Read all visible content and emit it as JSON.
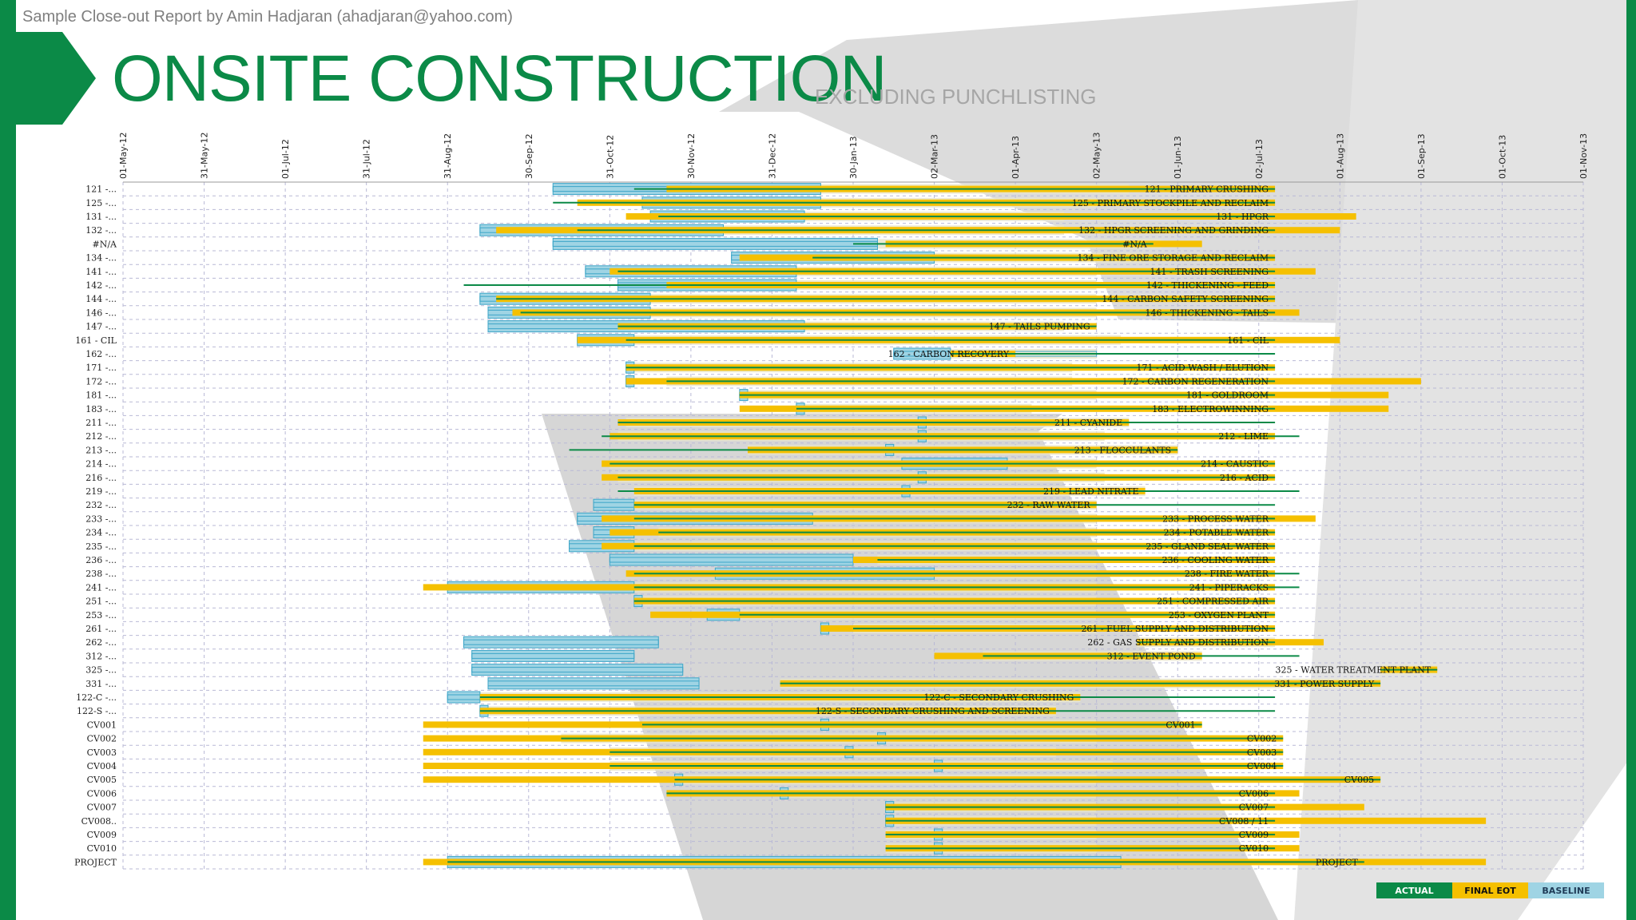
{
  "header_note": "Sample Close-out Report by Amin Hadjaran (ahadjaran@yahoo.com)",
  "title": "ONSITE CONSTRUCTION",
  "subtitle": "EXCLUDING PUNCHLISTING",
  "colors": {
    "accent": "#0b8a47",
    "eot": "#f5c000",
    "baseline": "#9fd4e4",
    "baseline_stroke": "#3ea6c8",
    "plan_fill": "#e9e5c8"
  },
  "legend": {
    "actual": "ACTUAL",
    "final_eot": "FINAL EOT",
    "baseline": "BASELINE"
  },
  "chart_data": {
    "type": "gantt",
    "date_ticks": [
      "01-May-12",
      "31-May-12",
      "01-Jul-12",
      "31-Jul-12",
      "31-Aug-12",
      "30-Sep-12",
      "31-Oct-12",
      "30-Nov-12",
      "31-Dec-12",
      "30-Jan-13",
      "02-Mar-13",
      "01-Apr-13",
      "02-May-13",
      "01-Jun-13",
      "02-Jul-13",
      "01-Aug-13",
      "01-Sep-13",
      "01-Oct-13",
      "01-Nov-13"
    ],
    "x_range_months": [
      0,
      18
    ],
    "series_names": [
      "ACTUAL",
      "FINAL EOT",
      "BASELINE"
    ],
    "tasks": [
      {
        "row": "121 -...",
        "label": "121 - PRIMARY CRUSHING",
        "base": [
          5.3,
          12.4
        ],
        "eot": [
          6.7,
          14.2
        ],
        "actual": [
          6.3,
          14.2
        ],
        "box": [
          5.3,
          8.6
        ],
        "fill": [
          6.7,
          12.4
        ]
      },
      {
        "row": "125 -...",
        "label": "125 - PRIMARY STOCKPILE AND RECLAIM",
        "base": [
          6.4,
          10.3
        ],
        "eot": [
          5.6,
          14.2
        ],
        "actual": [
          5.3,
          14.2
        ],
        "box": [
          6.4,
          8.6
        ],
        "fill": [
          6.4,
          12.0
        ]
      },
      {
        "row": "131 -...",
        "label": "131 - HPGR",
        "base": [
          6.5,
          11.6
        ],
        "eot": [
          6.2,
          15.2
        ],
        "actual": [
          6.6,
          14.2
        ],
        "box": [
          6.5,
          8.4
        ],
        "fill": [
          6.5,
          11.6
        ]
      },
      {
        "row": "132 -...",
        "label": "132 - HPGR SCREENING AND GRINDING",
        "base": [
          4.4,
          11.6
        ],
        "eot": [
          4.6,
          15.0
        ],
        "actual": [
          5.6,
          14.2
        ],
        "box": [
          4.4,
          7.4
        ],
        "fill": [
          5.0,
          11.6
        ]
      },
      {
        "row": "#N/A",
        "label": "#N/A",
        "base": [
          5.3,
          9.3
        ],
        "eot": [
          9.4,
          13.3
        ],
        "actual": [
          9.0,
          12.7
        ],
        "box": [
          5.3,
          9.3
        ],
        "fill": [
          9.3,
          12.8
        ]
      },
      {
        "row": "134 -...",
        "label": "134 - FINE ORE STORAGE AND RECLAIM",
        "base": [
          7.5,
          10.0
        ],
        "eot": [
          7.6,
          14.2
        ],
        "actual": [
          8.5,
          14.2
        ],
        "box": [
          7.5,
          10.0
        ],
        "fill": [
          8.5,
          12.6
        ]
      },
      {
        "row": "141 -...",
        "label": "141 - TRASH SCREENING",
        "base": [
          5.7,
          11.4
        ],
        "eot": [
          6.0,
          14.7
        ],
        "actual": [
          6.1,
          14.2
        ],
        "box": [
          5.7,
          8.3
        ],
        "fill": [
          6.1,
          12.0
        ]
      },
      {
        "row": "142 -...",
        "label": "142 - THICKENING - FEED",
        "base": [
          6.1,
          10.6
        ],
        "eot": [
          6.7,
          14.2
        ],
        "actual": [
          4.2,
          14.2
        ],
        "box": [
          6.1,
          8.3
        ],
        "fill": [
          6.7,
          12.0
        ]
      },
      {
        "row": "144 -...",
        "label": "144 - CARBON SAFETY SCREENING",
        "base": [
          4.4,
          10.6
        ],
        "eot": [
          4.6,
          14.2
        ],
        "actual": [
          4.6,
          14.2
        ],
        "box": [
          4.4,
          6.5
        ],
        "fill": [
          6.5,
          12.0
        ]
      },
      {
        "row": "146 -...",
        "label": "146 - THICKENING - TAILS",
        "base": [
          4.5,
          10.6
        ],
        "eot": [
          4.8,
          14.5
        ],
        "actual": [
          4.9,
          14.2
        ],
        "box": [
          4.5,
          6.5
        ],
        "fill": [
          4.9,
          12.0
        ]
      },
      {
        "row": "147 -...",
        "label": "147 - TAILS PUMPING",
        "base": [
          4.5,
          8.4
        ],
        "eot": [
          6.1,
          12.0
        ],
        "actual": [
          6.1,
          12.0
        ],
        "box": [
          4.5,
          8.4
        ],
        "fill": [
          6.1,
          11.6
        ]
      },
      {
        "row": "161 - CIL",
        "label": "161 - CIL",
        "base": [
          5.6,
          12.3
        ],
        "eot": [
          5.6,
          15.0
        ],
        "actual": [
          6.2,
          14.2
        ],
        "box": [
          5.6,
          6.3
        ],
        "fill": [
          6.2,
          12.3
        ]
      },
      {
        "row": "162 -...",
        "label": "162 - CARBON RECOVERY",
        "base": [
          9.5,
          12.0
        ],
        "eot": [
          10.2,
          11.0
        ],
        "actual": [
          10.2,
          14.2
        ],
        "box": [
          9.5,
          10.2
        ],
        "fill": [
          10.2,
          12.0
        ]
      },
      {
        "row": "171 -...",
        "label": "171 - ACID WASH / ELUTION",
        "base": [
          6.2,
          11.7
        ],
        "eot": [
          6.2,
          14.2
        ],
        "actual": [
          6.2,
          14.2
        ],
        "box": [
          6.2,
          6.3
        ],
        "fill": [
          6.2,
          11.7
        ]
      },
      {
        "row": "172 -...",
        "label": "172 - CARBON REGENERATION",
        "base": [
          6.2,
          11.4
        ],
        "eot": [
          6.2,
          16.0
        ],
        "actual": [
          6.7,
          14.2
        ],
        "box": [
          6.2,
          6.3
        ],
        "fill": [
          6.7,
          11.7
        ]
      },
      {
        "row": "181 -...",
        "label": "181 - GOLDROOM",
        "base": [
          7.6,
          12.0
        ],
        "eot": [
          7.6,
          15.6
        ],
        "actual": [
          7.6,
          14.2
        ],
        "box": [
          7.6,
          7.7
        ],
        "fill": [
          7.7,
          12.0
        ]
      },
      {
        "row": "183 -...",
        "label": "183 - ELECTROWINNING",
        "base": [
          8.3,
          11.2
        ],
        "eot": [
          7.6,
          15.6
        ],
        "actual": [
          8.3,
          14.2
        ],
        "box": [
          8.3,
          8.4
        ],
        "fill": [
          8.4,
          11.2
        ]
      },
      {
        "row": "211 -...",
        "label": "211 - CYANIDE",
        "base": [
          9.8,
          11.4
        ],
        "eot": [
          6.1,
          12.4
        ],
        "actual": [
          6.1,
          14.2
        ],
        "box": [
          9.8,
          9.9
        ],
        "fill": [
          6.2,
          12.4
        ]
      },
      {
        "row": "212 -...",
        "label": "212 - LIME",
        "base": [
          9.8,
          11.6
        ],
        "eot": [
          6.0,
          14.2
        ],
        "actual": [
          5.9,
          14.5
        ],
        "box": [
          9.8,
          9.9
        ],
        "fill": [
          6.1,
          12.1
        ]
      },
      {
        "row": "213 -...",
        "label": "213 - FLOCCULANTS",
        "base": [
          9.4,
          11.5
        ],
        "eot": [
          7.7,
          13.0
        ],
        "actual": [
          5.5,
          13.0
        ],
        "box": [
          9.4,
          9.5
        ],
        "fill": [
          7.7,
          13.0
        ]
      },
      {
        "row": "214 -...",
        "label": "214 - CAUSTIC",
        "base": [
          9.6,
          10.9
        ],
        "eot": [
          5.9,
          14.2
        ],
        "actual": [
          6.0,
          14.2
        ],
        "box": [
          9.6,
          10.9
        ],
        "fill": [
          6.0,
          12.0
        ]
      },
      {
        "row": "216 -...",
        "label": "216 - ACID",
        "base": [
          9.8,
          11.6
        ],
        "eot": [
          5.9,
          14.2
        ],
        "actual": [
          6.1,
          14.2
        ],
        "box": [
          9.8,
          9.9
        ],
        "fill": [
          6.1,
          12.1
        ]
      },
      {
        "row": "219 -...",
        "label": "219 - LEAD NITRATE",
        "base": [
          9.6,
          11.2
        ],
        "eot": [
          6.3,
          12.6
        ],
        "actual": [
          6.1,
          14.5
        ],
        "box": [
          9.6,
          9.7
        ],
        "fill": [
          6.3,
          12.6
        ]
      },
      {
        "row": "232 -...",
        "label": "232 - RAW WATER",
        "base": [
          5.8,
          7.8
        ],
        "eot": [
          6.3,
          12.0
        ],
        "actual": [
          6.3,
          14.2
        ],
        "box": [
          5.8,
          6.3
        ],
        "fill": [
          6.3,
          12.0
        ]
      },
      {
        "row": "233 -...",
        "label": "233 - PROCESS WATER",
        "base": [
          5.6,
          8.5
        ],
        "eot": [
          5.9,
          14.7
        ],
        "actual": [
          6.3,
          14.2
        ],
        "box": [
          5.6,
          8.5
        ],
        "fill": [
          6.3,
          12.0
        ]
      },
      {
        "row": "234 -...",
        "label": "234 - POTABLE WATER",
        "base": [
          5.8,
          11.1
        ],
        "eot": [
          6.0,
          14.2
        ],
        "actual": [
          6.6,
          14.2
        ],
        "box": [
          5.8,
          6.3
        ],
        "fill": [
          6.6,
          12.0
        ]
      },
      {
        "row": "235 -...",
        "label": "235 - GLAND SEAL WATER",
        "base": [
          5.5,
          8.1
        ],
        "eot": [
          5.9,
          14.2
        ],
        "actual": [
          6.3,
          14.2
        ],
        "box": [
          5.5,
          6.3
        ],
        "fill": [
          6.3,
          12.0
        ]
      },
      {
        "row": "236 -...",
        "label": "236 - COOLING WATER",
        "base": [
          6.0,
          9.9
        ],
        "eot": [
          9.0,
          14.2
        ],
        "actual": [
          9.3,
          14.2
        ],
        "box": [
          6.0,
          9.0
        ],
        "fill": [
          9.3,
          12.0
        ]
      },
      {
        "row": "238 -...",
        "label": "238 - FIRE WATER",
        "base": [
          7.3,
          10.0
        ],
        "eot": [
          6.2,
          14.2
        ],
        "actual": [
          6.3,
          14.5
        ],
        "box": [
          7.3,
          10.0
        ],
        "fill": [
          7.3,
          12.0
        ]
      },
      {
        "row": "241 -...",
        "label": "241 - PIPERACKS",
        "base": [
          4.0,
          8.8
        ],
        "eot": [
          3.7,
          14.2
        ],
        "actual": [
          6.3,
          14.5
        ],
        "box": [
          4.0,
          6.3
        ],
        "fill": [
          4.0,
          12.0
        ]
      },
      {
        "row": "251 -...",
        "label": "251 - COMPRESSED AIR",
        "base": [
          6.3,
          9.4
        ],
        "eot": [
          6.3,
          14.2
        ],
        "actual": [
          6.3,
          14.2
        ],
        "box": [
          6.3,
          6.4
        ],
        "fill": [
          6.3,
          12.0
        ]
      },
      {
        "row": "253 -...",
        "label": "253 - OXYGEN PLANT",
        "base": [
          7.2,
          8.6
        ],
        "eot": [
          6.5,
          14.2
        ],
        "actual": [
          7.6,
          14.2
        ],
        "box": [
          7.2,
          7.6
        ],
        "fill": [
          7.6,
          12.0
        ]
      },
      {
        "row": "261 -...",
        "label": "261 - FUEL SUPPLY AND DISTRIBUTION",
        "base": [
          8.6,
          9.6
        ],
        "eot": [
          8.6,
          14.2
        ],
        "actual": [
          9.0,
          14.2
        ],
        "box": [
          8.6,
          8.7
        ],
        "fill": [
          9.0,
          12.0
        ]
      },
      {
        "row": "262 -...",
        "label": "262 - GAS SUPPLY AND DISTRIBUTION",
        "base": [
          4.2,
          6.6
        ],
        "eot": [
          12.5,
          14.8
        ],
        "actual": [
          12.5,
          14.2
        ],
        "box": [
          4.2,
          6.6
        ],
        "fill": [
          12.5,
          14.2
        ]
      },
      {
        "row": "312 -...",
        "label": "312 - EVENT POND",
        "base": [
          4.3,
          6.3
        ],
        "eot": [
          10.0,
          13.3
        ],
        "actual": [
          10.6,
          14.5
        ],
        "box": [
          4.3,
          6.3
        ],
        "fill": [
          10.6,
          13.3
        ]
      },
      {
        "row": "325 -...",
        "label": "325 - WATER TREATMENT PLANT",
        "base": [
          4.3,
          6.9
        ],
        "eot": [
          15.5,
          16.2
        ],
        "actual": [
          15.5,
          16.2
        ],
        "box": [
          4.3,
          6.9
        ],
        "fill": [
          15.5,
          16.2
        ]
      },
      {
        "row": "331 -...",
        "label": "331 - POWER SUPPLY",
        "base": [
          4.5,
          7.1
        ],
        "eot": [
          8.1,
          15.5
        ],
        "actual": [
          8.1,
          15.5
        ],
        "box": [
          4.5,
          7.1
        ],
        "fill": [
          8.1,
          15.5
        ]
      },
      {
        "row": "122-C -...",
        "label": "122-C - SECONDARY CRUSHING",
        "base": [
          4.0,
          10.0
        ],
        "eot": [
          4.4,
          11.8
        ],
        "actual": [
          4.4,
          14.2
        ],
        "box": [
          4.0,
          4.4
        ],
        "fill": [
          4.4,
          11.8
        ]
      },
      {
        "row": "122-S -...",
        "label": "122-S - SECONDARY CRUSHING AND SCREENING",
        "base": [
          4.4,
          9.8
        ],
        "eot": [
          4.4,
          11.5
        ],
        "actual": [
          4.4,
          14.2
        ],
        "box": [
          4.4,
          4.5
        ],
        "fill": [
          4.5,
          11.5
        ]
      },
      {
        "row": "CV001",
        "label": "CV001",
        "base": [
          8.6,
          12.0
        ],
        "eot": [
          3.7,
          13.3
        ],
        "actual": [
          6.4,
          13.3
        ],
        "box": [
          8.6,
          8.7
        ],
        "fill": [
          6.4,
          12.0
        ]
      },
      {
        "row": "CV002",
        "label": "CV002",
        "base": [
          9.3,
          12.0
        ],
        "eot": [
          3.7,
          14.3
        ],
        "actual": [
          5.4,
          14.3
        ],
        "box": [
          9.3,
          9.4
        ],
        "fill": [
          5.4,
          12.0
        ]
      },
      {
        "row": "CV003",
        "label": "CV003",
        "base": [
          8.9,
          11.5
        ],
        "eot": [
          3.7,
          14.3
        ],
        "actual": [
          6.0,
          14.3
        ],
        "box": [
          8.9,
          9.0
        ],
        "fill": [
          6.0,
          11.5
        ]
      },
      {
        "row": "CV004",
        "label": "CV004",
        "base": [
          10.0,
          12.2
        ],
        "eot": [
          3.7,
          14.3
        ],
        "actual": [
          6.0,
          14.3
        ],
        "box": [
          10.0,
          10.1
        ],
        "fill": [
          6.0,
          12.2
        ]
      },
      {
        "row": "CV005",
        "label": "CV005",
        "base": [
          6.8,
          9.4
        ],
        "eot": [
          3.7,
          15.5
        ],
        "actual": [
          6.8,
          15.5
        ],
        "box": [
          6.8,
          6.9
        ],
        "fill": [
          6.8,
          12.0
        ]
      },
      {
        "row": "CV006",
        "label": "CV006",
        "base": [
          8.1,
          10.0
        ],
        "eot": [
          6.7,
          14.5
        ],
        "actual": [
          6.7,
          14.2
        ],
        "box": [
          8.1,
          8.2
        ],
        "fill": [
          8.1,
          12.0
        ]
      },
      {
        "row": "CV007",
        "label": "CV007",
        "base": [
          9.4,
          11.7
        ],
        "eot": [
          9.4,
          15.3
        ],
        "actual": [
          9.4,
          14.2
        ],
        "box": [
          9.4,
          9.5
        ],
        "fill": [
          9.4,
          12.0
        ]
      },
      {
        "row": "CV008..",
        "label": "CV008 / 11",
        "base": [
          9.4,
          11.4
        ],
        "eot": [
          9.4,
          16.8
        ],
        "actual": [
          9.4,
          14.2
        ],
        "box": [
          9.4,
          9.5
        ],
        "fill": [
          9.4,
          12.0
        ]
      },
      {
        "row": "CV009",
        "label": "CV009",
        "base": [
          10.0,
          11.4
        ],
        "eot": [
          9.4,
          14.5
        ],
        "actual": [
          9.4,
          14.2
        ],
        "box": [
          10.0,
          10.1
        ],
        "fill": [
          9.4,
          12.0
        ]
      },
      {
        "row": "CV010",
        "label": "CV010",
        "base": [
          10.0,
          11.4
        ],
        "eot": [
          9.4,
          14.5
        ],
        "actual": [
          9.4,
          14.2
        ],
        "box": [
          10.0,
          10.1
        ],
        "fill": [
          9.4,
          12.0
        ]
      },
      {
        "row": "PROJECT",
        "label": "PROJECT",
        "base": [
          4.0,
          12.3
        ],
        "eot": [
          3.7,
          16.8
        ],
        "actual": [
          4.0,
          15.3
        ],
        "box": [
          4.0,
          12.3
        ],
        "fill": [
          4.0,
          12.3
        ]
      }
    ]
  }
}
